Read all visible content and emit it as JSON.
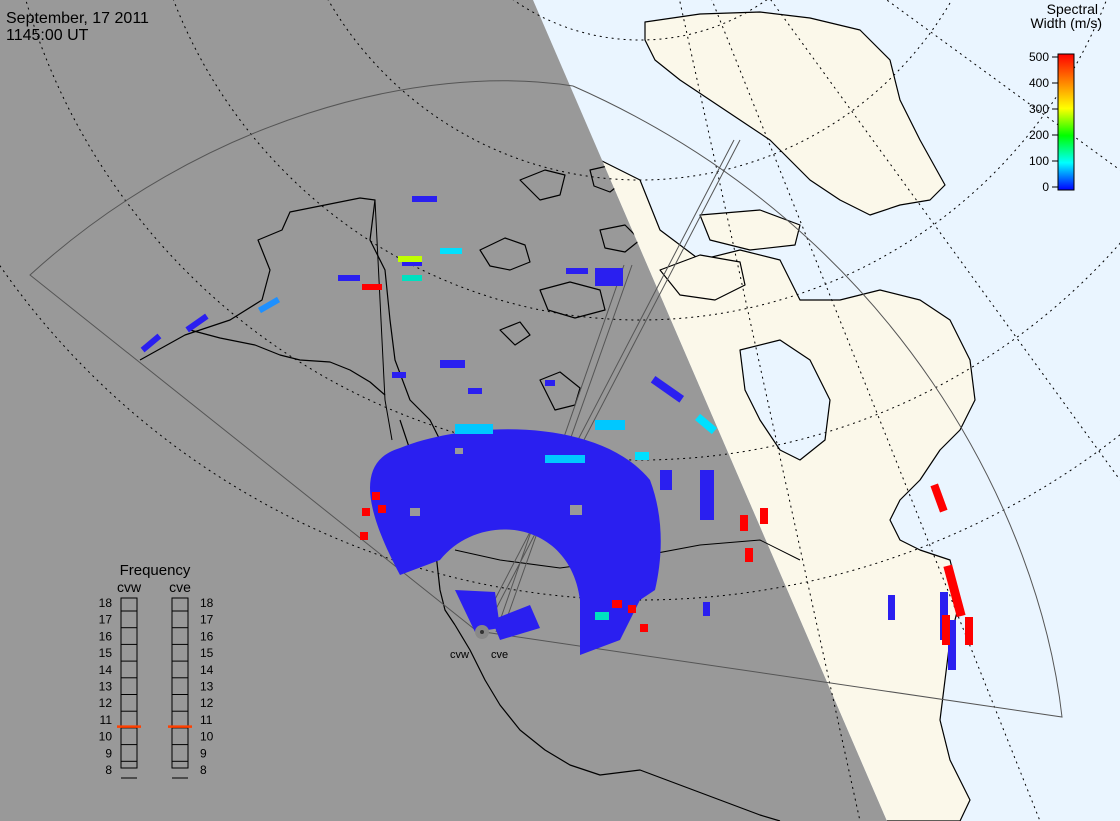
{
  "header": {
    "date": "September, 17 2011",
    "time": "1145:00 UT"
  },
  "legend": {
    "title_line1": "Spectral",
    "title_line2": "Width (m/s)",
    "ticks": [
      "500",
      "400",
      "300",
      "200",
      "100",
      "0"
    ],
    "colors": [
      "#ff0000",
      "#ff8000",
      "#ffff00",
      "#00ff00",
      "#00ffff",
      "#0000ff"
    ]
  },
  "frequency_panel": {
    "title": "Frequency",
    "left_label": "cvw",
    "right_label": "cve",
    "ticks": [
      "18",
      "17",
      "16",
      "15",
      "14",
      "13",
      "12",
      "11",
      "10",
      "9",
      "8"
    ],
    "cvw_value_mhz": 10.6,
    "cve_value_mhz": 10.6,
    "marker_color": "#ff4000"
  },
  "radars": {
    "west_label": "cvw",
    "east_label": "cve"
  },
  "colors": {
    "night": "#999999",
    "day_ocean": "#eaf5ff",
    "day_land": "#fbf8ea",
    "echo_blue": "#2a1ff0",
    "echo_red": "#ff0000",
    "echo_cyan": "#00e0ff"
  }
}
